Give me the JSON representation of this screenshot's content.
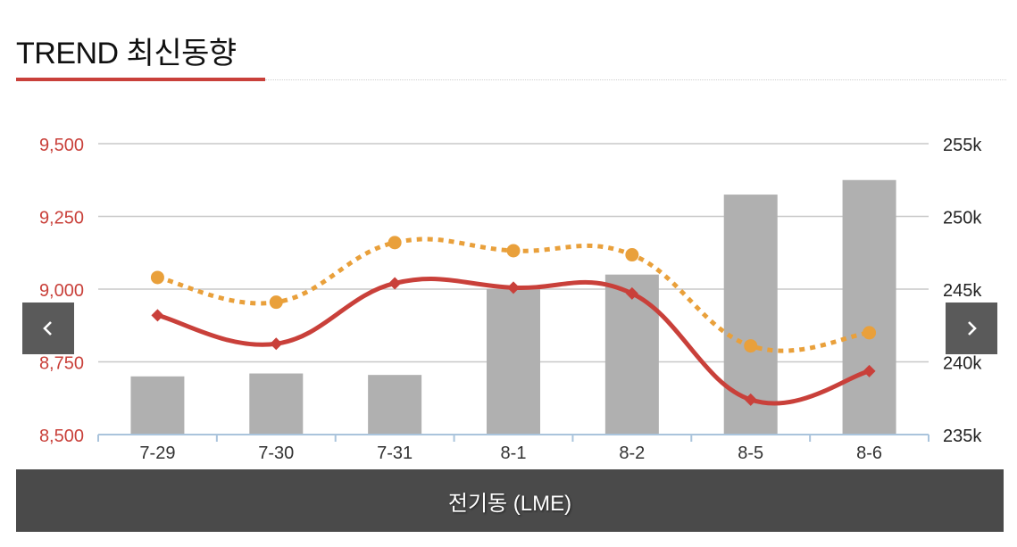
{
  "header": {
    "title": "TREND 최신동향"
  },
  "footer": {
    "label": "전기동 (LME)"
  },
  "nav": {
    "prev_icon": "chevron-left-icon",
    "next_icon": "chevron-right-icon"
  },
  "colors": {
    "bars": "#b0b0b0",
    "line_solid": "#c9403a",
    "line_dotted": "#e9a03b",
    "left_axis": "#c9403a",
    "accent": "#c9403a",
    "footer_bg": "#4a4a4a"
  },
  "chart_data": {
    "type": "bar+line",
    "categories": [
      "7-29",
      "7-30",
      "7-31",
      "8-1",
      "8-2",
      "8-5",
      "8-6"
    ],
    "y_left": {
      "ticks": [
        "9,500",
        "9,250",
        "9,000",
        "8,750",
        "8,500"
      ],
      "range": [
        8500,
        9500
      ]
    },
    "y_right": {
      "ticks": [
        "255k",
        "250k",
        "245k",
        "240k",
        "235k"
      ],
      "range": [
        235000,
        255000
      ]
    },
    "grid": true,
    "series": [
      {
        "type": "bar",
        "axis": "right",
        "values": [
          239000,
          239200,
          239100,
          245000,
          246000,
          251500,
          252500
        ]
      },
      {
        "type": "line-solid",
        "marker": "diamond",
        "axis": "left",
        "values": [
          8910,
          8812,
          9020,
          9005,
          8985,
          8620,
          8718
        ]
      },
      {
        "type": "line-dotted",
        "marker": "circle",
        "axis": "left",
        "values": [
          9040,
          8955,
          9160,
          9132,
          9118,
          8805,
          8850
        ]
      }
    ]
  }
}
